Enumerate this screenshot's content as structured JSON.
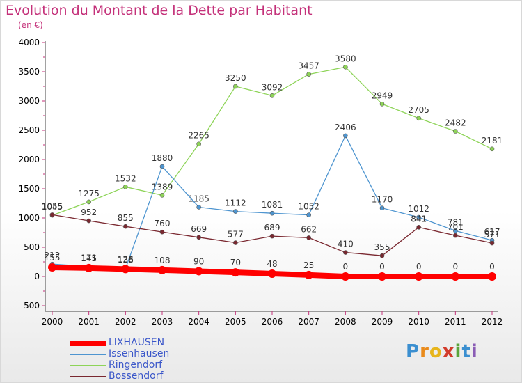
{
  "title": "Evolution du Montant de la Dette par Habitant",
  "subtitle": "(en €)",
  "logo": {
    "p": "P",
    "r": "r",
    "o": "o",
    "x": "x",
    "i1": "i",
    "t": "t",
    "i2": "i"
  },
  "chart_data": {
    "type": "line",
    "x": [
      "2000",
      "2001",
      "2002",
      "2003",
      "2004",
      "2005",
      "2006",
      "2007",
      "2008",
      "2009",
      "2010",
      "2011",
      "2012"
    ],
    "ylim": [
      -500,
      4000
    ],
    "yticks": [
      -500,
      0,
      500,
      1000,
      1500,
      2000,
      2500,
      3000,
      3500,
      4000
    ],
    "grid": false,
    "legend": "bottom-left",
    "series": [
      {
        "name": "Ringendorf",
        "color": "#8ed458",
        "values": [
          1045,
          1275,
          1532,
          1389,
          2265,
          3250,
          3092,
          3457,
          3580,
          2949,
          2705,
          2482,
          2181
        ],
        "labels": [
          "1045",
          "1275",
          "1532",
          "1389",
          "2265",
          "3250",
          "3092",
          "3457",
          "3580",
          "2949",
          "2705",
          "2482",
          "2181"
        ]
      },
      {
        "name": "Issenhausen",
        "color": "#4e95d0",
        "values": [
          212,
          171,
          136,
          1880,
          1185,
          1112,
          1081,
          1052,
          2406,
          1170,
          1012,
          781,
          617
        ],
        "labels": [
          "212",
          "171",
          "136",
          "1880",
          "1185",
          "1112",
          "1081",
          "1052",
          "2406",
          "1170",
          "1012",
          "781",
          "617"
        ]
      },
      {
        "name": "Bossendorf",
        "color": "#7a2830",
        "values": [
          1055,
          952,
          855,
          760,
          669,
          577,
          689,
          662,
          410,
          355,
          841,
          701,
          571
        ],
        "labels": [
          "1055",
          "952",
          "855",
          "760",
          "669",
          "577",
          "689",
          "662",
          "410",
          "355",
          "841",
          "701",
          "571"
        ]
      },
      {
        "name": "LIXHAUSEN",
        "color": "#ff0000",
        "values": [
          155,
          145,
          126,
          108,
          90,
          70,
          48,
          25,
          0,
          0,
          0,
          0,
          0
        ],
        "labels": [
          "155",
          "145",
          "126",
          "108",
          "90",
          "70",
          "48",
          "25",
          "0",
          "0",
          "0",
          "0",
          "0"
        ]
      }
    ]
  }
}
